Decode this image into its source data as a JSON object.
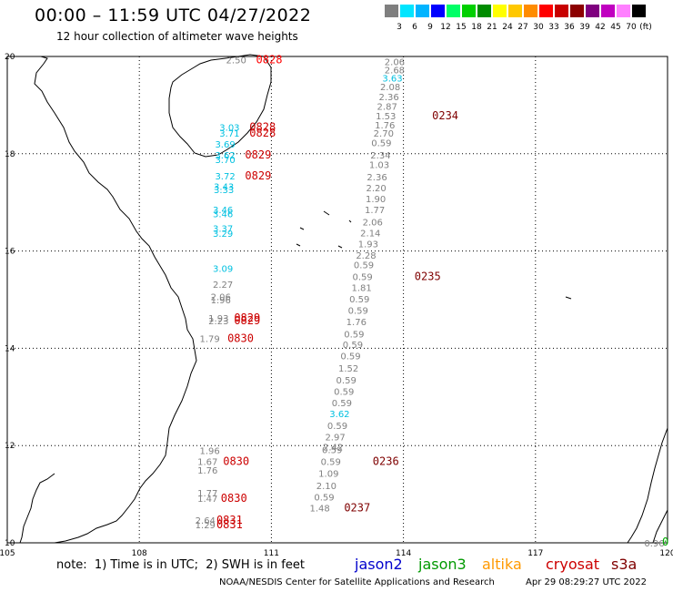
{
  "title": "00:00 – 11:59 UTC 04/27/2022",
  "subtitle": "12 hour collection of altimeter wave heights",
  "scale": {
    "colors": [
      "#7f7f7f",
      "#00e5ff",
      "#00b4ff",
      "#0000ff",
      "#00ff66",
      "#00d000",
      "#008c00",
      "#ffff00",
      "#ffc800",
      "#ff8c00",
      "#ff0000",
      "#c80000",
      "#8c0000",
      "#7f007f",
      "#c000c0",
      "#ff80ff",
      "#000000"
    ],
    "labels": [
      "3",
      "6",
      "9",
      "12",
      "15",
      "18",
      "21",
      "24",
      "27",
      "30",
      "33",
      "36",
      "39",
      "42",
      "45",
      "70"
    ],
    "unit": "(ft)"
  },
  "axes": {
    "x_ticks": [
      "105",
      "108",
      "111",
      "114",
      "117",
      "120"
    ],
    "y_ticks": [
      "20",
      "18",
      "16",
      "14",
      "12",
      "10"
    ]
  },
  "swh_points": [
    {
      "lon": 113.8,
      "lat": 19.9,
      "val": "2.06",
      "color": "#808080"
    },
    {
      "lon": 113.8,
      "lat": 19.73,
      "val": "2.68",
      "color": "#808080"
    },
    {
      "lon": 113.75,
      "lat": 19.56,
      "val": "3.63",
      "color": "#00c0e0"
    },
    {
      "lon": 113.7,
      "lat": 19.38,
      "val": "2.08",
      "color": "#808080"
    },
    {
      "lon": 113.67,
      "lat": 19.18,
      "val": "2.36",
      "color": "#808080"
    },
    {
      "lon": 113.63,
      "lat": 18.98,
      "val": "2.87",
      "color": "#808080"
    },
    {
      "lon": 113.6,
      "lat": 18.78,
      "val": "1.53",
      "color": "#808080"
    },
    {
      "lon": 113.58,
      "lat": 18.6,
      "val": "1.76",
      "color": "#808080"
    },
    {
      "lon": 113.55,
      "lat": 18.43,
      "val": "2.70",
      "color": "#808080"
    },
    {
      "lon": 113.5,
      "lat": 18.23,
      "val": "0.59",
      "color": "#808080"
    },
    {
      "lon": 113.48,
      "lat": 17.98,
      "val": "2.34",
      "color": "#808080"
    },
    {
      "lon": 113.45,
      "lat": 17.78,
      "val": "1.03",
      "color": "#808080"
    },
    {
      "lon": 113.4,
      "lat": 17.53,
      "val": "2.36",
      "color": "#808080"
    },
    {
      "lon": 113.38,
      "lat": 17.3,
      "val": "2.20",
      "color": "#808080"
    },
    {
      "lon": 113.37,
      "lat": 17.08,
      "val": "1.90",
      "color": "#808080"
    },
    {
      "lon": 113.35,
      "lat": 16.85,
      "val": "1.77",
      "color": "#808080"
    },
    {
      "lon": 113.3,
      "lat": 16.6,
      "val": "2.06",
      "color": "#808080"
    },
    {
      "lon": 113.25,
      "lat": 16.38,
      "val": "2.14",
      "color": "#808080"
    },
    {
      "lon": 113.2,
      "lat": 16.15,
      "val": "1.93",
      "color": "#808080"
    },
    {
      "lon": 113.15,
      "lat": 15.92,
      "val": "2.28",
      "color": "#808080"
    },
    {
      "lon": 113.1,
      "lat": 15.72,
      "val": "0.59",
      "color": "#808080"
    },
    {
      "lon": 113.07,
      "lat": 15.48,
      "val": "0.59",
      "color": "#808080"
    },
    {
      "lon": 113.05,
      "lat": 15.25,
      "val": "1.81",
      "color": "#808080"
    },
    {
      "lon": 113.0,
      "lat": 15.02,
      "val": "0.59",
      "color": "#808080"
    },
    {
      "lon": 112.97,
      "lat": 14.78,
      "val": "0.59",
      "color": "#808080"
    },
    {
      "lon": 112.93,
      "lat": 14.55,
      "val": "1.76",
      "color": "#808080"
    },
    {
      "lon": 112.88,
      "lat": 14.3,
      "val": "0.59",
      "color": "#808080"
    },
    {
      "lon": 112.85,
      "lat": 14.08,
      "val": "0.59",
      "color": "#808080"
    },
    {
      "lon": 112.8,
      "lat": 13.85,
      "val": "0.59",
      "color": "#808080"
    },
    {
      "lon": 112.75,
      "lat": 13.6,
      "val": "1.52",
      "color": "#808080"
    },
    {
      "lon": 112.7,
      "lat": 13.35,
      "val": "0.59",
      "color": "#808080"
    },
    {
      "lon": 112.65,
      "lat": 13.12,
      "val": "0.59",
      "color": "#808080"
    },
    {
      "lon": 112.6,
      "lat": 12.88,
      "val": "0.59",
      "color": "#808080"
    },
    {
      "lon": 112.55,
      "lat": 12.66,
      "val": "3.62",
      "color": "#00c0e0"
    },
    {
      "lon": 112.5,
      "lat": 12.42,
      "val": "0.59",
      "color": "#808080"
    },
    {
      "lon": 112.45,
      "lat": 12.18,
      "val": "2.97",
      "color": "#808080"
    },
    {
      "lon": 112.4,
      "lat": 11.98,
      "val": "2.42",
      "color": "#808080"
    },
    {
      "lon": 112.38,
      "lat": 11.92,
      "val": "0.59",
      "color": "#808080"
    },
    {
      "lon": 112.35,
      "lat": 11.68,
      "val": "0.59",
      "color": "#808080"
    },
    {
      "lon": 112.3,
      "lat": 11.43,
      "val": "1.09",
      "color": "#808080"
    },
    {
      "lon": 112.25,
      "lat": 11.18,
      "val": "2.10",
      "color": "#808080"
    },
    {
      "lon": 112.2,
      "lat": 10.95,
      "val": "0.59",
      "color": "#808080"
    },
    {
      "lon": 112.1,
      "lat": 10.72,
      "val": "1.48",
      "color": "#808080"
    },
    {
      "lon": 110.2,
      "lat": 19.93,
      "val": "2.50",
      "color": "#808080"
    },
    {
      "lon": 110.05,
      "lat": 18.55,
      "val": "3.03",
      "color": "#00c0e0"
    },
    {
      "lon": 110.05,
      "lat": 18.43,
      "val": "3.71",
      "color": "#00c0e0"
    },
    {
      "lon": 109.95,
      "lat": 18.2,
      "val": "3.69",
      "color": "#00c0e0"
    },
    {
      "lon": 109.95,
      "lat": 17.98,
      "val": "3.62",
      "color": "#00c0e0"
    },
    {
      "lon": 109.95,
      "lat": 17.88,
      "val": "3.70",
      "color": "#00c0e0"
    },
    {
      "lon": 109.95,
      "lat": 17.55,
      "val": "3.72",
      "color": "#00c0e0"
    },
    {
      "lon": 109.92,
      "lat": 17.33,
      "val": "3.43",
      "color": "#00c0e0"
    },
    {
      "lon": 109.92,
      "lat": 17.27,
      "val": "3.33",
      "color": "#00c0e0"
    },
    {
      "lon": 109.9,
      "lat": 16.85,
      "val": "3.46",
      "color": "#00c0e0"
    },
    {
      "lon": 109.9,
      "lat": 16.77,
      "val": "3.46",
      "color": "#00c0e0"
    },
    {
      "lon": 109.9,
      "lat": 16.47,
      "val": "3.37",
      "color": "#00c0e0"
    },
    {
      "lon": 109.9,
      "lat": 16.37,
      "val": "3.29",
      "color": "#00c0e0"
    },
    {
      "lon": 109.9,
      "lat": 15.65,
      "val": "3.09",
      "color": "#00c0e0"
    },
    {
      "lon": 109.9,
      "lat": 15.32,
      "val": "2.27",
      "color": "#808080"
    },
    {
      "lon": 109.85,
      "lat": 15.07,
      "val": "2.06",
      "color": "#808080"
    },
    {
      "lon": 109.85,
      "lat": 15.0,
      "val": "1.96",
      "color": "#808080"
    },
    {
      "lon": 109.8,
      "lat": 14.63,
      "val": "1.93",
      "color": "#808080"
    },
    {
      "lon": 109.8,
      "lat": 14.57,
      "val": "2.23",
      "color": "#808080"
    },
    {
      "lon": 109.6,
      "lat": 14.2,
      "val": "1.79",
      "color": "#808080"
    },
    {
      "lon": 109.6,
      "lat": 11.9,
      "val": "1.96",
      "color": "#808080"
    },
    {
      "lon": 109.55,
      "lat": 11.68,
      "val": "1.67",
      "color": "#808080"
    },
    {
      "lon": 109.55,
      "lat": 11.5,
      "val": "1.76",
      "color": "#808080"
    },
    {
      "lon": 109.55,
      "lat": 11.03,
      "val": "1.77",
      "color": "#808080"
    },
    {
      "lon": 109.55,
      "lat": 10.92,
      "val": "1.47",
      "color": "#808080"
    },
    {
      "lon": 109.5,
      "lat": 10.47,
      "val": "2.64",
      "color": "#808080"
    },
    {
      "lon": 109.5,
      "lat": 10.37,
      "val": "1.29",
      "color": "#808080"
    },
    {
      "lon": 119.7,
      "lat": 10.0,
      "val": "0.96",
      "color": "#808080"
    }
  ],
  "pass_labels": [
    {
      "lon": 110.95,
      "lat": 19.93,
      "text": "0828",
      "color": "#ff0000"
    },
    {
      "lon": 110.8,
      "lat": 18.55,
      "text": "0828",
      "color": "#cc0000"
    },
    {
      "lon": 110.8,
      "lat": 18.43,
      "text": "0828",
      "color": "#cc0000"
    },
    {
      "lon": 110.7,
      "lat": 17.98,
      "text": "0829",
      "color": "#cc0000"
    },
    {
      "lon": 110.7,
      "lat": 17.55,
      "text": "0829",
      "color": "#cc0000"
    },
    {
      "lon": 110.45,
      "lat": 14.63,
      "text": "0829",
      "color": "#cc0000"
    },
    {
      "lon": 110.45,
      "lat": 14.57,
      "text": "0829",
      "color": "#cc0000"
    },
    {
      "lon": 110.3,
      "lat": 14.2,
      "text": "0830",
      "color": "#cc0000"
    },
    {
      "lon": 110.2,
      "lat": 11.68,
      "text": "0830",
      "color": "#cc0000"
    },
    {
      "lon": 110.15,
      "lat": 10.92,
      "text": "0830",
      "color": "#cc0000"
    },
    {
      "lon": 110.05,
      "lat": 10.47,
      "text": "0831",
      "color": "#cc0000"
    },
    {
      "lon": 110.05,
      "lat": 10.37,
      "text": "0831",
      "color": "#cc0000"
    },
    {
      "lon": 114.95,
      "lat": 18.78,
      "text": "0234",
      "color": "#7f0000"
    },
    {
      "lon": 114.55,
      "lat": 15.48,
      "text": "0235",
      "color": "#7f0000"
    },
    {
      "lon": 113.6,
      "lat": 11.68,
      "text": "0236",
      "color": "#7f0000"
    },
    {
      "lon": 112.95,
      "lat": 10.72,
      "text": "0237",
      "color": "#7f0000"
    },
    {
      "lon": 119.95,
      "lat": 10.02,
      "text": "0",
      "color": "#00aa00"
    }
  ],
  "note": "note:  1) Time is in UTC;  2) SWH is in feet",
  "missions": [
    {
      "name": "jason2",
      "color": "#0000cc"
    },
    {
      "name": "jason3",
      "color": "#009900"
    },
    {
      "name": "altika",
      "color": "#ff9900"
    },
    {
      "name": "cryosat",
      "color": "#cc0000"
    },
    {
      "name": "s3a",
      "color": "#7f0000"
    }
  ],
  "credit": "NOAA/NESDIS Center for Satellite Applications and Research",
  "generated": "Apr 29 08:29:27 UTC 2022"
}
